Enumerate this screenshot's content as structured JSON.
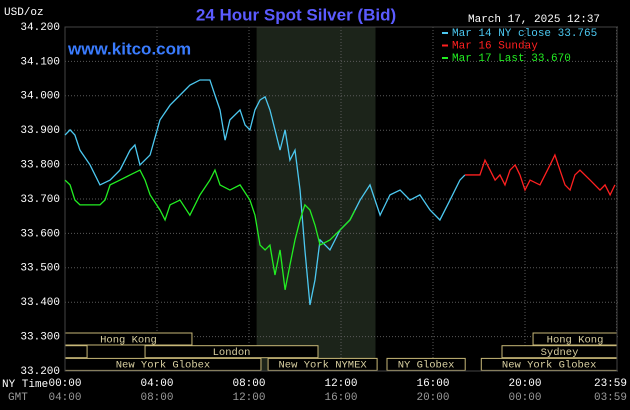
{
  "chart_data": {
    "type": "line",
    "title": "24 Hour Spot Silver (Bid)",
    "ylabel": "USD/oz",
    "date": "March 17, 2025 12:37",
    "watermark": "www.kitco.com",
    "xlabel": "NY Time",
    "x2label": "GMT",
    "xlim": [
      0,
      24
    ],
    "ylim": [
      33.2,
      34.2
    ],
    "xticks": [
      {
        "value": 0,
        "label": "00:00"
      },
      {
        "value": 4,
        "label": "04:00"
      },
      {
        "value": 8,
        "label": "08:00"
      },
      {
        "value": 12,
        "label": "12:00"
      },
      {
        "value": 16,
        "label": "16:00"
      },
      {
        "value": 20,
        "label": "20:00"
      },
      {
        "value": 23.98,
        "label": "23:59"
      }
    ],
    "gmt_ticklabels": [
      "04:00",
      "08:00",
      "12:00",
      "16:00",
      "20:00",
      "00:00",
      "03:59"
    ],
    "yticks": [
      {
        "value": 33.2,
        "label": "33.200"
      },
      {
        "value": 33.3,
        "label": "33.300"
      },
      {
        "value": 33.4,
        "label": "33.400"
      },
      {
        "value": 33.5,
        "label": "33.500"
      },
      {
        "value": 33.6,
        "label": "33.600"
      },
      {
        "value": 33.7,
        "label": "33.700"
      },
      {
        "value": 33.8,
        "label": "33.800"
      },
      {
        "value": 33.9,
        "label": "33.900"
      },
      {
        "value": 34.0,
        "label": "34.000"
      },
      {
        "value": 34.1,
        "label": "34.100"
      },
      {
        "value": 34.2,
        "label": "34.200"
      }
    ],
    "grid": true,
    "shade": [
      8.33,
      13.5
    ],
    "sessions": [
      [
        {
          "label": "Hong Kong",
          "start": 0,
          "end": 5.52
        },
        {
          "label": "Hong Kong",
          "start": 20.35,
          "end": 24
        }
      ],
      [
        {
          "label": null,
          "start": 0,
          "end": 0.96
        },
        {
          "label": "London",
          "start": 3.48,
          "end": 11.0
        },
        {
          "label": "Sydney",
          "start": 19.0,
          "end": 24
        }
      ],
      [
        {
          "label": "New York Globex",
          "start": 0,
          "end": 8.52
        },
        {
          "label": "New York NYMEX",
          "start": 8.83,
          "end": 13.57
        },
        {
          "label": "NY Globex",
          "start": 14.0,
          "end": 17.4
        },
        {
          "label": "New York Globex",
          "start": 18.1,
          "end": 24
        }
      ]
    ],
    "series": [
      {
        "name": "Mar 14 NY close 33.765",
        "color": "#4cc8f0",
        "x": [
          0,
          0.22,
          0.43,
          0.65,
          1.09,
          1.52,
          1.96,
          2.39,
          2.83,
          3.04,
          3.26,
          3.7,
          4.13,
          4.57,
          5.0,
          5.43,
          5.87,
          6.3,
          6.52,
          6.74,
          6.96,
          7.17,
          7.61,
          7.83,
          8.04,
          8.26,
          8.48,
          8.7,
          8.91,
          9.13,
          9.35,
          9.57,
          9.78,
          10.0,
          10.22,
          10.43,
          10.65,
          10.87,
          11.09,
          11.52,
          11.96,
          12.39,
          12.83,
          13.26,
          13.7,
          14.13,
          14.57,
          15.0,
          15.43,
          15.87,
          16.3,
          16.74,
          17.17,
          17.39
        ],
        "values": [
          33.886,
          33.901,
          33.886,
          33.842,
          33.799,
          33.741,
          33.755,
          33.784,
          33.842,
          33.857,
          33.799,
          33.828,
          33.93,
          33.973,
          34.002,
          34.031,
          34.046,
          34.046,
          34.002,
          33.959,
          33.871,
          33.93,
          33.959,
          33.915,
          33.901,
          33.959,
          33.988,
          33.997,
          33.959,
          33.901,
          33.842,
          33.901,
          33.813,
          33.842,
          33.726,
          33.552,
          33.392,
          33.465,
          33.581,
          33.552,
          33.61,
          33.639,
          33.697,
          33.741,
          33.653,
          33.712,
          33.726,
          33.697,
          33.712,
          33.668,
          33.639,
          33.697,
          33.755,
          33.77
        ]
      },
      {
        "name": "Mar 16 Sunday",
        "color": "#ff2020",
        "x": [
          17.39,
          18.04,
          18.26,
          18.48,
          18.7,
          18.91,
          19.13,
          19.35,
          19.57,
          19.78,
          20.0,
          20.22,
          20.65,
          20.87,
          21.09,
          21.3,
          21.52,
          21.74,
          21.96,
          22.17,
          22.39,
          22.83,
          23.26,
          23.48,
          23.7,
          23.91
        ],
        "values": [
          33.77,
          33.77,
          33.813,
          33.784,
          33.755,
          33.77,
          33.741,
          33.784,
          33.799,
          33.77,
          33.726,
          33.755,
          33.741,
          33.77,
          33.799,
          33.828,
          33.784,
          33.741,
          33.726,
          33.77,
          33.784,
          33.755,
          33.726,
          33.741,
          33.712,
          33.741
        ]
      },
      {
        "name": "Mar 17 Last 33.670",
        "color": "#22ee22",
        "x": [
          0,
          0.22,
          0.43,
          0.65,
          1.09,
          1.52,
          1.74,
          1.96,
          2.39,
          2.83,
          3.26,
          3.48,
          3.7,
          4.13,
          4.35,
          4.57,
          5.0,
          5.43,
          5.87,
          6.3,
          6.52,
          6.74,
          7.17,
          7.61,
          8.04,
          8.26,
          8.48,
          8.7,
          8.91,
          9.13,
          9.35,
          9.57,
          9.78,
          10.0,
          10.22,
          10.43,
          10.65,
          10.87,
          11.09,
          11.52,
          11.96,
          12.39,
          12.61
        ],
        "values": [
          33.755,
          33.741,
          33.697,
          33.683,
          33.683,
          33.683,
          33.697,
          33.741,
          33.755,
          33.77,
          33.784,
          33.755,
          33.712,
          33.668,
          33.639,
          33.683,
          33.697,
          33.653,
          33.712,
          33.755,
          33.784,
          33.741,
          33.726,
          33.741,
          33.697,
          33.653,
          33.566,
          33.552,
          33.566,
          33.479,
          33.552,
          33.436,
          33.508,
          33.581,
          33.639,
          33.683,
          33.668,
          33.624,
          33.566,
          33.581,
          33.61,
          33.639,
          33.668
        ]
      }
    ]
  }
}
